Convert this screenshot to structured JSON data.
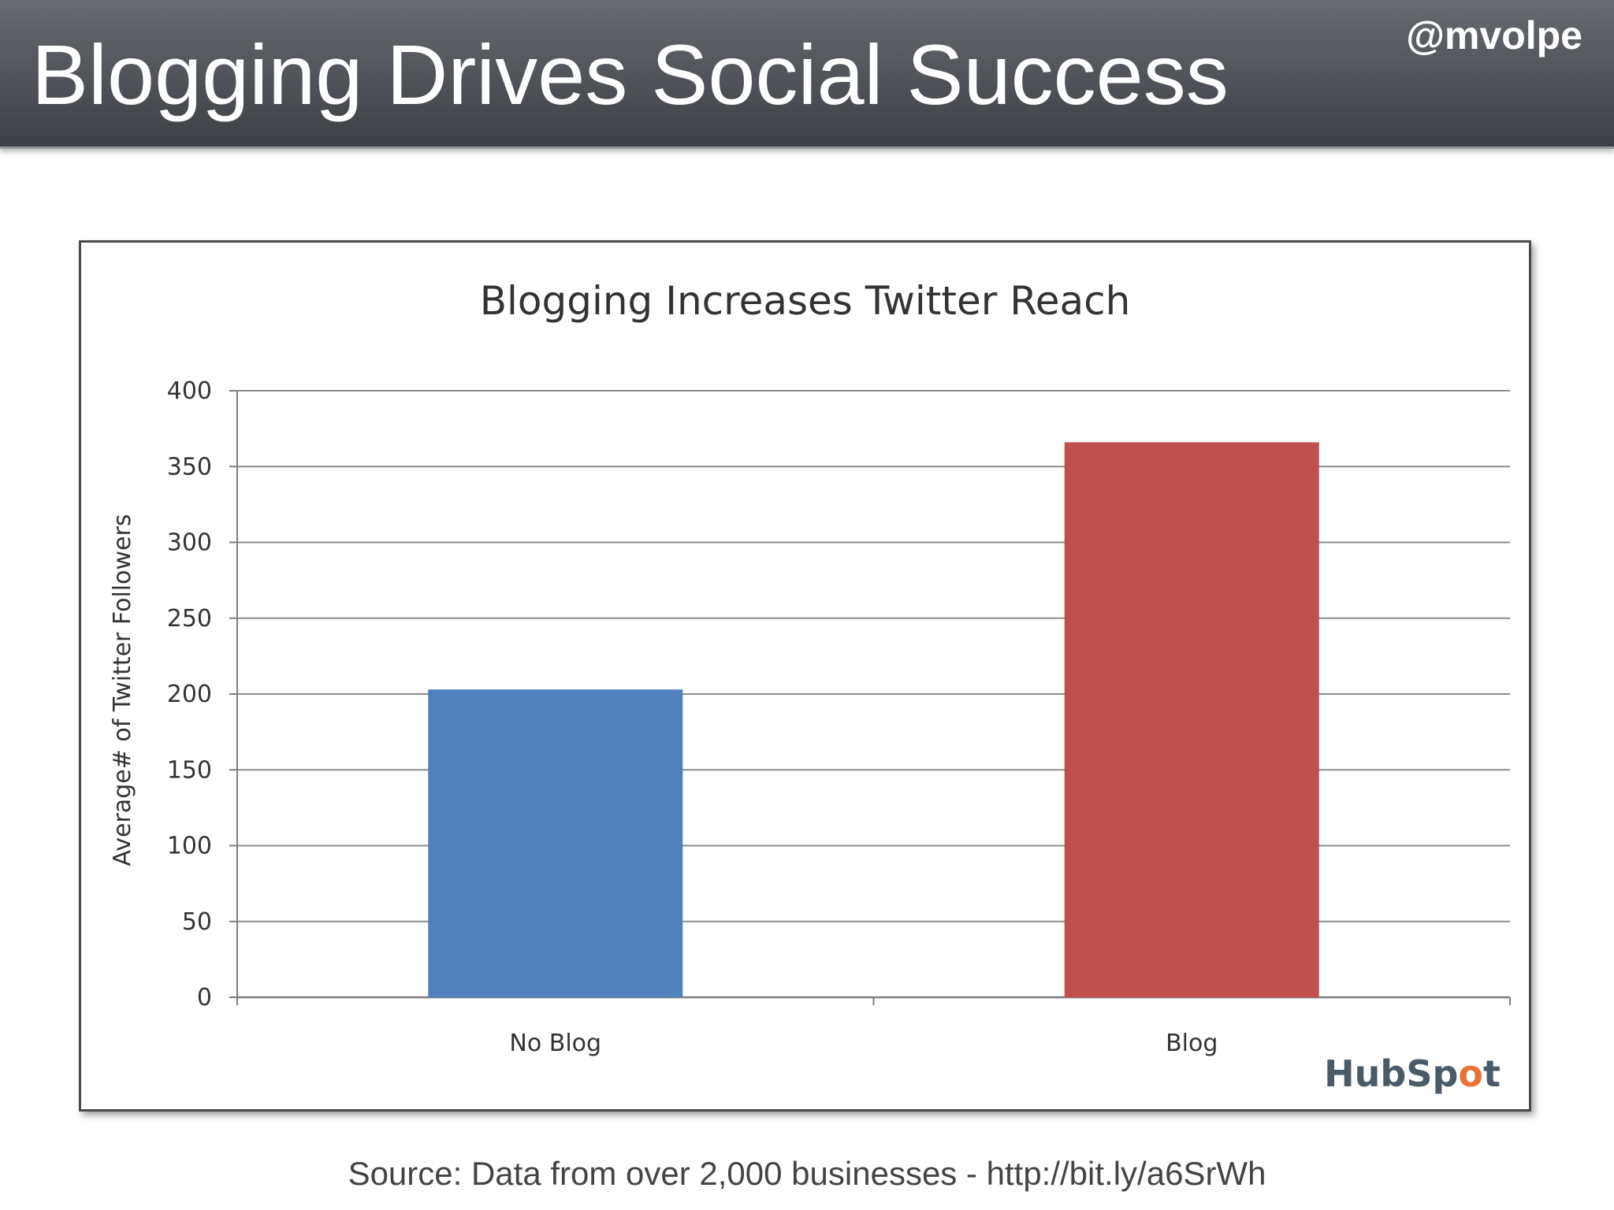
{
  "slide": {
    "title": "Blogging Drives Social Success",
    "handle": "@mvolpe",
    "source": "Source: Data from over 2,000 businesses - http://bit.ly/a6SrWh"
  },
  "logo": {
    "text_a": "HubSp",
    "text_b": "o",
    "text_c": "t"
  },
  "chart_data": {
    "type": "bar",
    "title": "Blogging Increases  Twitter Reach",
    "categories": [
      "No Blog",
      "Blog"
    ],
    "values": [
      203,
      366
    ],
    "colors": [
      "#4f81bd",
      "#c0504d"
    ],
    "xlabel": "",
    "ylabel": "Average# of Twitter Followers",
    "ylim": [
      0,
      400
    ],
    "yticks": [
      0,
      50,
      100,
      150,
      200,
      250,
      300,
      350,
      400
    ],
    "grid": true,
    "legend": "none"
  }
}
